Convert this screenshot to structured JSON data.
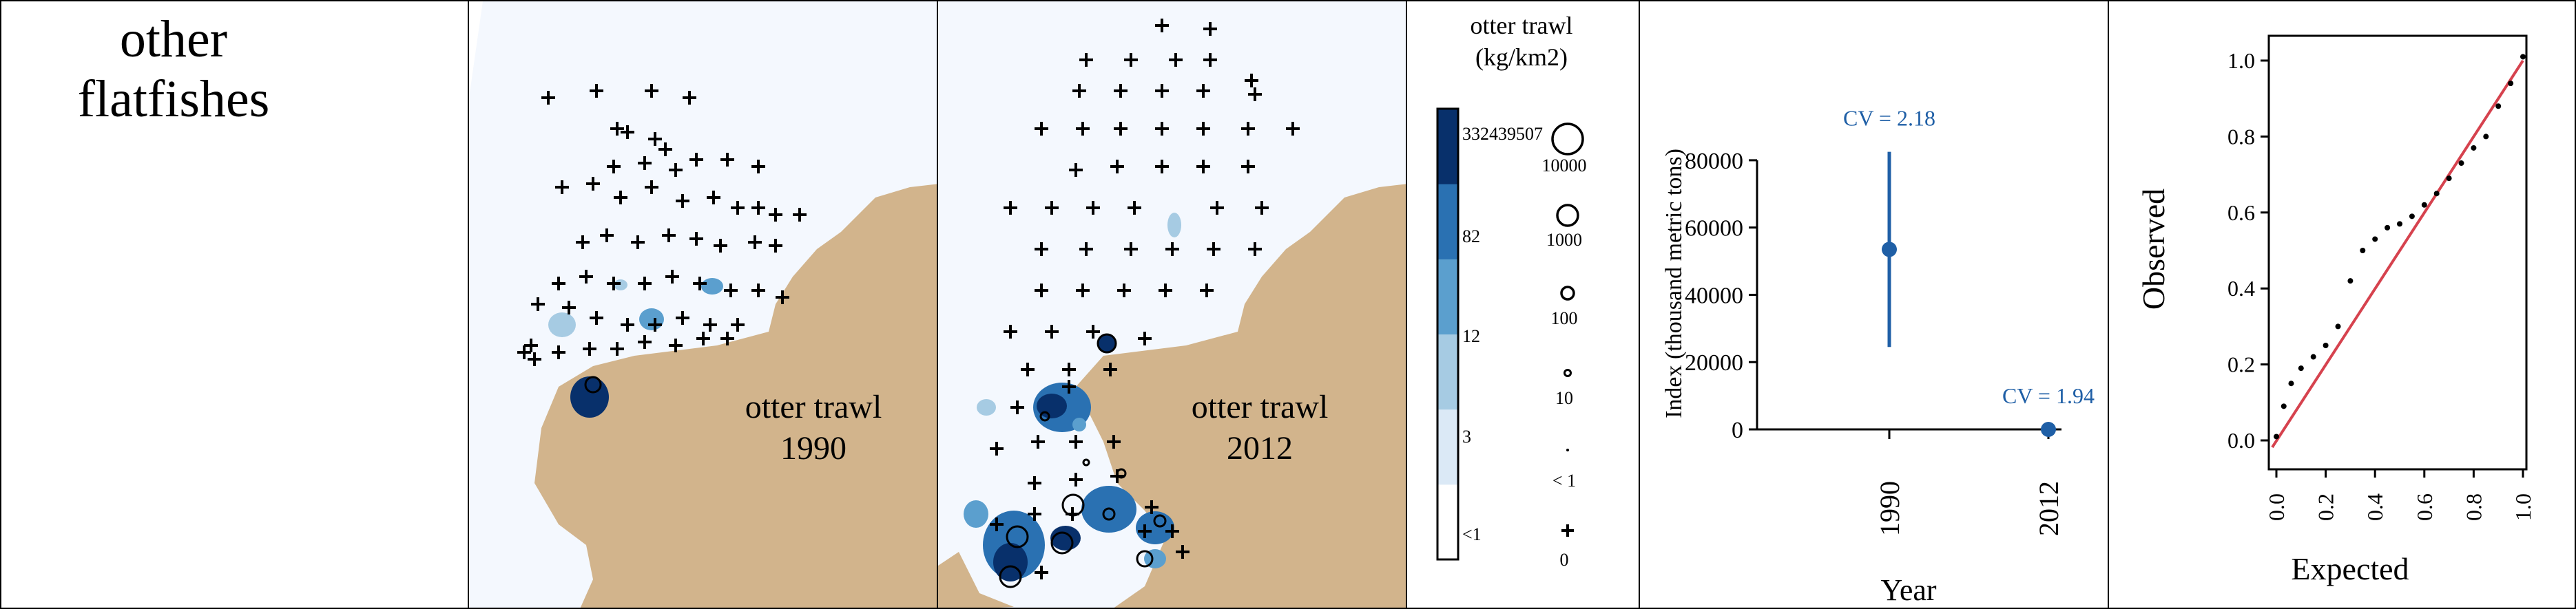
{
  "species": {
    "line1": "other",
    "line2": "flatfishes"
  },
  "maps": [
    {
      "year": "1990",
      "gear_label": "otter trawl",
      "year_label": "1990"
    },
    {
      "year": "2012",
      "gear_label": "otter trawl",
      "year_label": "2012"
    }
  ],
  "legend": {
    "title_line1": "otter trawl",
    "title_line2": "(kg/km2)",
    "colorbar_labels": [
      "<1",
      "3",
      "12",
      "82",
      "332439507"
    ],
    "circle_labels": [
      "10000",
      "1000",
      "100",
      "10",
      "< 1",
      "0"
    ]
  },
  "colors": {
    "land": "#d2b48c",
    "water": "#f4f8fe",
    "ramp": [
      "#ffffff",
      "#dbe9f6",
      "#a6cbe3",
      "#5b9fce",
      "#2a71b2",
      "#08306b"
    ],
    "index_series": "#1f5fa6",
    "qq_points": "#000000",
    "qq_line": "#d6424e"
  },
  "chart_data": [
    {
      "type": "scatter",
      "title": "",
      "xlabel": "Year",
      "ylabel": "Index (thousand metric tons)",
      "categories": [
        "1990",
        "2012"
      ],
      "ylim": [
        0,
        90000
      ],
      "yticks": [
        0,
        20000,
        40000,
        60000,
        80000
      ],
      "series": [
        {
          "values": [
            53500,
            0
          ],
          "lower": [
            24500,
            0
          ],
          "upper": [
            82500,
            0
          ],
          "labels": [
            "CV = 2.18",
            "CV = 1.94"
          ]
        }
      ],
      "grid": false
    },
    {
      "type": "scatter",
      "title": "",
      "xlabel": "Expected",
      "ylabel": "Observed",
      "xlim": [
        0,
        1
      ],
      "ylim": [
        0,
        1
      ],
      "xticks": [
        0.0,
        0.2,
        0.4,
        0.6,
        0.8,
        1.0
      ],
      "yticks": [
        0.0,
        0.2,
        0.4,
        0.6,
        0.8,
        1.0
      ],
      "series": [
        {
          "x": [
            0.0,
            0.03,
            0.06,
            0.1,
            0.15,
            0.2,
            0.25,
            0.3,
            0.35,
            0.4,
            0.45,
            0.5,
            0.55,
            0.6,
            0.65,
            0.7,
            0.75,
            0.8,
            0.85,
            0.9,
            0.95,
            1.0
          ],
          "y": [
            0.01,
            0.09,
            0.15,
            0.19,
            0.22,
            0.25,
            0.3,
            0.42,
            0.5,
            0.53,
            0.56,
            0.57,
            0.59,
            0.62,
            0.65,
            0.69,
            0.73,
            0.77,
            0.8,
            0.88,
            0.94,
            1.01
          ]
        }
      ],
      "reference_line": {
        "x": [
          0,
          1
        ],
        "y": [
          0,
          1
        ]
      },
      "grid": false
    }
  ]
}
